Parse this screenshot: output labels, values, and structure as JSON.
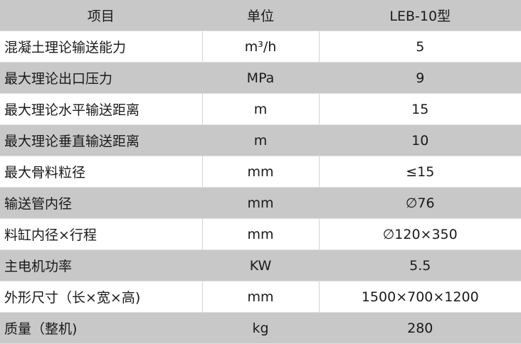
{
  "header": {
    "item": "项目",
    "unit": "单位",
    "model": "LEB-10型"
  },
  "rows": [
    {
      "item": "混凝土理论输送能力",
      "unit": "m³/h",
      "value": "5"
    },
    {
      "item": "最大理论出口压力",
      "unit": "MPa",
      "value": "9"
    },
    {
      "item": "最大理论水平输送距离",
      "unit": "m",
      "value": "15"
    },
    {
      "item": "最大理论垂直输送距离",
      "unit": "m",
      "value": "10"
    },
    {
      "item": "最大骨料粒径",
      "unit": "mm",
      "value": "≤15"
    },
    {
      "item": "输送管内径",
      "unit": "mm",
      "value": "∅76"
    },
    {
      "item": "料缸内径×行程",
      "unit": "mm",
      "value": "∅120×350"
    },
    {
      "item": "主电机功率",
      "unit": "KW",
      "value": "5.5"
    },
    {
      "item": "外形尺寸（长×宽×高)",
      "unit": "mm",
      "value": "1500×700×1200"
    },
    {
      "item": "质量（整机)",
      "unit": "kg",
      "value": "280"
    }
  ],
  "colors": {
    "stripe": "#c8c8c8",
    "white": "#ffffff"
  }
}
